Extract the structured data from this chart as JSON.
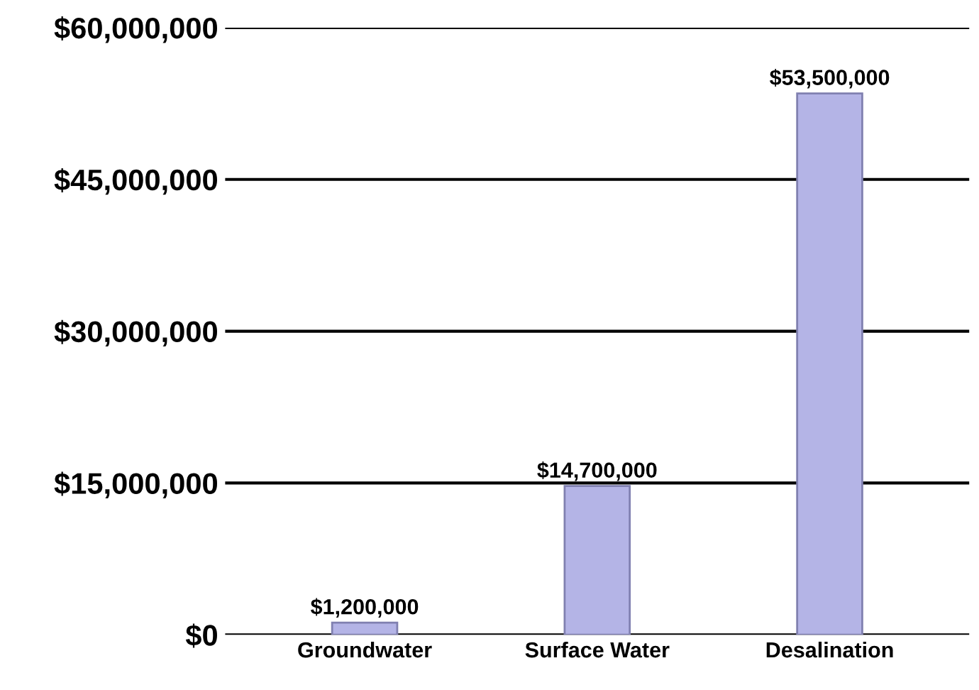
{
  "chart_data": {
    "type": "bar",
    "categories": [
      "Groundwater",
      "Surface Water",
      "Desalination"
    ],
    "values": [
      1200000,
      14700000,
      53500000
    ],
    "value_labels": [
      "$1,200,000",
      "$14,700,000",
      "$53,500,000"
    ],
    "color": "#b4b4e6",
    "ylim": [
      0,
      60000000
    ],
    "yticks": [
      {
        "value": 0,
        "label": "$0"
      },
      {
        "value": 15000000,
        "label": "$15,000,000"
      },
      {
        "value": 30000000,
        "label": "$30,000,000"
      },
      {
        "value": 45000000,
        "label": "$45,000,000"
      },
      {
        "value": 60000000,
        "label": "$60,000,000"
      }
    ],
    "grid": "y"
  }
}
